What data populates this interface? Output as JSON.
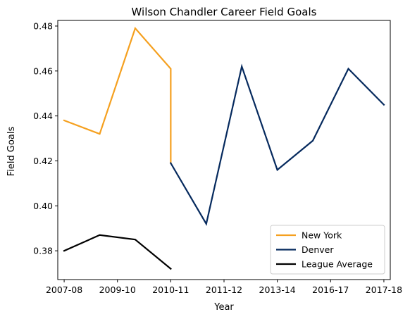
{
  "chart_data": {
    "type": "line",
    "title": "Wilson Chandler Career Field Goals",
    "xlabel": "Year",
    "ylabel": "Field Goals",
    "x_tick_labels": [
      "2007-08",
      "2009-10",
      "2010-11",
      "2011-12",
      "2013-14",
      "2016-17",
      "2017-18"
    ],
    "y_ticks": [
      0.38,
      0.4,
      0.42,
      0.44,
      0.46,
      0.48
    ],
    "y_tick_labels": [
      "0.38",
      "0.40",
      "0.42",
      "0.44",
      "0.46",
      "0.48"
    ],
    "xlim": [
      -0.18,
      9.18
    ],
    "ylim": [
      0.3672,
      0.4825
    ],
    "grid": false,
    "legend_position": "bottom-right",
    "series": [
      {
        "name": "New York",
        "color": "#f5a01f",
        "x": [
          0,
          1,
          2,
          3,
          3
        ],
        "y": [
          0.438,
          0.432,
          0.479,
          0.461,
          0.419
        ]
      },
      {
        "name": "Denver",
        "color": "#062a5e",
        "x": [
          3,
          4,
          5,
          6,
          7,
          8,
          9
        ],
        "y": [
          0.419,
          0.392,
          0.462,
          0.416,
          0.429,
          0.461,
          0.445
        ]
      },
      {
        "name": "League Average",
        "color": "#000000",
        "x": [
          0,
          1,
          2,
          3
        ],
        "y": [
          0.38,
          0.387,
          0.385,
          0.372
        ]
      }
    ]
  }
}
